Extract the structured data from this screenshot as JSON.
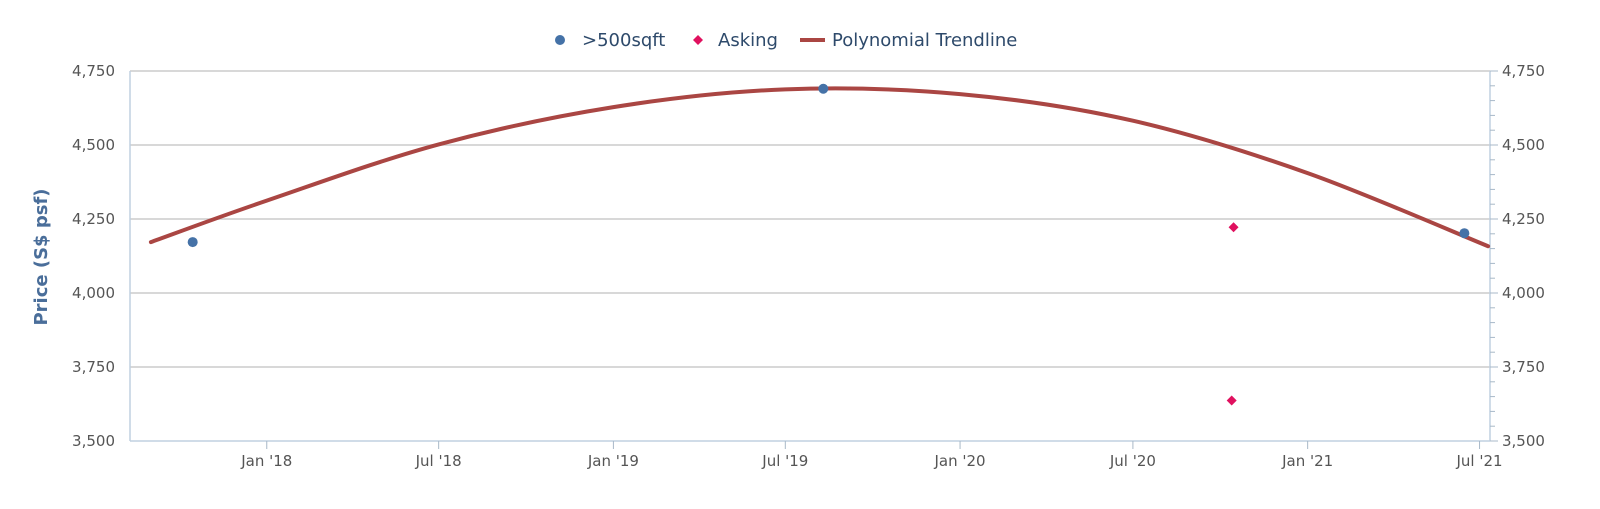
{
  "chart_data": {
    "type": "scatter",
    "ylabel": "Price (S$ psf)",
    "ylim": [
      3500,
      4750
    ],
    "y_ticks": [
      3500,
      3750,
      4000,
      4250,
      4500,
      4750
    ],
    "y_tick_labels": [
      "3,500",
      "3,750",
      "4,000",
      "4,250",
      "4,500",
      "4,750"
    ],
    "x_range": [
      "2017-08-10",
      "2021-07-12"
    ],
    "x_ticks": [
      "2018-01-01",
      "2018-07-01",
      "2019-01-01",
      "2019-07-01",
      "2020-01-01",
      "2020-07-01",
      "2021-01-01",
      "2021-07-01"
    ],
    "x_tick_labels": [
      "Jan '18",
      "Jul '18",
      "Jan '19",
      "Jul '19",
      "Jan '20",
      "Jul '20",
      "Jan '21",
      "Jul '21"
    ],
    "grid": true,
    "legend_position": "top-center",
    "series": [
      {
        "name": ">500sqft",
        "marker": "circle",
        "color": "#4572a7",
        "points": [
          {
            "x": "2017-10-15",
            "y": 4172
          },
          {
            "x": "2019-08-10",
            "y": 4690
          },
          {
            "x": "2021-06-15",
            "y": 4202
          }
        ]
      },
      {
        "name": "Asking",
        "marker": "diamond",
        "color": "#e0115f",
        "points": [
          {
            "x": "2020-10-15",
            "y": 4222
          },
          {
            "x": "2020-10-13",
            "y": 3637
          }
        ]
      },
      {
        "name": "Polynomial Trendline",
        "type": "line",
        "color": "#aa4643",
        "points": [
          {
            "x": "2017-09-01",
            "y": 4172
          },
          {
            "x": "2018-01-01",
            "y": 4312
          },
          {
            "x": "2018-07-01",
            "y": 4502
          },
          {
            "x": "2019-01-01",
            "y": 4628
          },
          {
            "x": "2019-07-01",
            "y": 4688
          },
          {
            "x": "2020-01-01",
            "y": 4672
          },
          {
            "x": "2020-07-01",
            "y": 4582
          },
          {
            "x": "2021-01-01",
            "y": 4405
          },
          {
            "x": "2021-07-10",
            "y": 4158
          }
        ]
      }
    ]
  }
}
